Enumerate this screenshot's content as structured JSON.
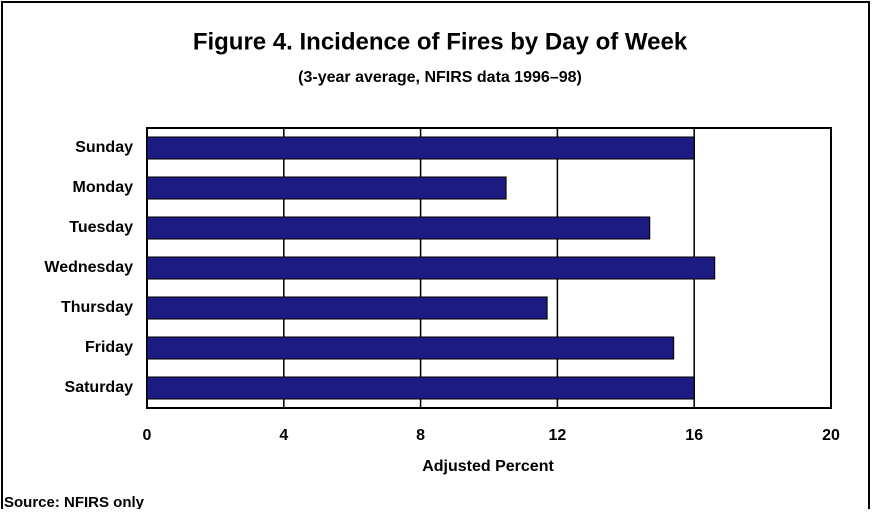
{
  "chart_data": {
    "type": "bar",
    "orientation": "horizontal",
    "title": "Figure 4.  Incidence of Fires by Day of Week",
    "subtitle": "(3-year average, NFIRS data 1996–98)",
    "x_label": "Adjusted Percent",
    "source": "Source:  NFIRS only",
    "categories": [
      "Sunday",
      "Monday",
      "Tuesday",
      "Wednesday",
      "Thursday",
      "Friday",
      "Saturday"
    ],
    "values": [
      16.0,
      10.5,
      14.7,
      16.6,
      11.7,
      15.4,
      16.0
    ],
    "color": "#1b1b82",
    "xlim": [
      0,
      20
    ],
    "xticks": [
      0,
      4,
      8,
      12,
      16,
      20
    ],
    "grid": true
  }
}
